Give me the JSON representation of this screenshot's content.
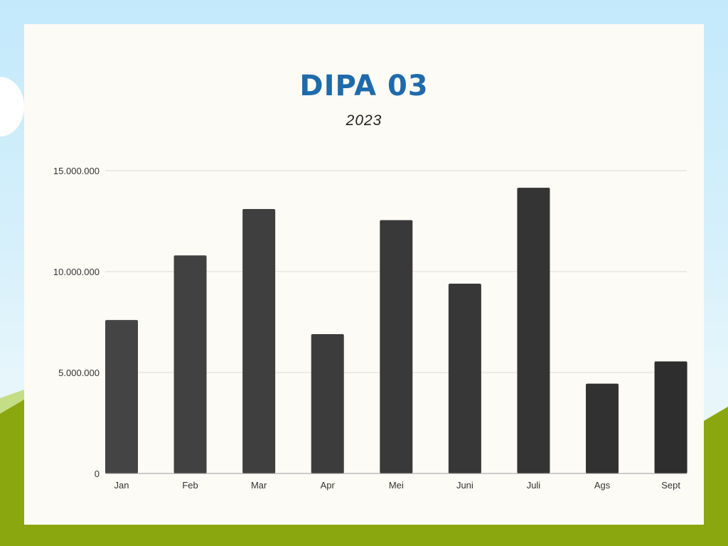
{
  "chart_data": {
    "type": "bar",
    "title": "DIPA 03",
    "subtitle": "2023",
    "categories": [
      "Jan",
      "Feb",
      "Mar",
      "Apr",
      "Mei",
      "Juni",
      "Juli",
      "Ags",
      "Sept"
    ],
    "values": [
      7600000,
      10800000,
      13100000,
      6900000,
      12550000,
      9400000,
      14150000,
      4450000,
      5550000
    ],
    "ylim": [
      0,
      15000000
    ],
    "yticks": [
      0,
      5000000,
      10000000,
      15000000
    ],
    "ytick_labels": [
      "0",
      "5.000.000",
      "10.000.000",
      "15.000.000"
    ],
    "xlabel": "",
    "ylabel": "",
    "grid": true,
    "bar_colors": [
      "#444444",
      "#414141",
      "#3f3f3f",
      "#3c3c3c",
      "#393939",
      "#373737",
      "#343434",
      "#313131",
      "#2e2e2e"
    ]
  }
}
